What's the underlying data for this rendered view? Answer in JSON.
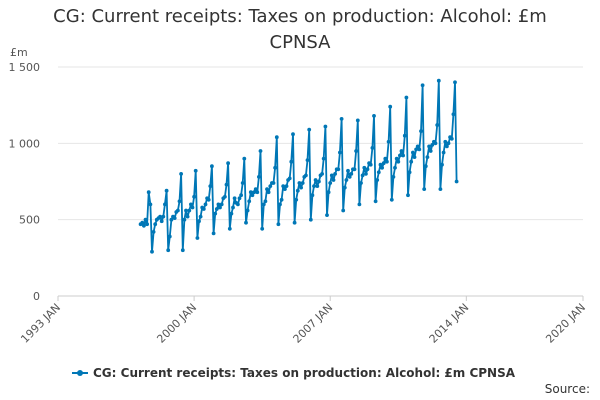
{
  "chart_data": {
    "type": "line",
    "title": "CG: Current receipts: Taxes on production: Alcohol: £m CPNSA",
    "ylabel": "£m",
    "xlabel": "",
    "ylim": [
      0,
      1500
    ],
    "y_ticks": [
      0,
      500,
      1000,
      1500
    ],
    "y_tick_labels": [
      "0",
      "500",
      "1 000",
      "1 500"
    ],
    "x_range": [
      1993,
      2020
    ],
    "x_ticks": [
      1993,
      2000,
      2007,
      2014,
      2020
    ],
    "x_tick_labels": [
      "1993 JAN",
      "2000 JAN",
      "2007 JAN",
      "2014 JAN",
      "2020 JAN"
    ],
    "grid": true,
    "legend_position": "bottom",
    "series": [
      {
        "name": "CG: Current receipts: Taxes on production: Alcohol: £m CPNSA",
        "color": "#0077b6",
        "start": "1997-04",
        "frequency": "monthly",
        "values": [
          470,
          480,
          460,
          500,
          470,
          680,
          600,
          290,
          420,
          470,
          500,
          510,
          520,
          490,
          520,
          600,
          690,
          300,
          390,
          500,
          520,
          510,
          550,
          560,
          620,
          800,
          300,
          500,
          560,
          520,
          560,
          600,
          580,
          650,
          820,
          380,
          490,
          520,
          580,
          570,
          600,
          640,
          630,
          720,
          850,
          410,
          540,
          570,
          600,
          580,
          600,
          640,
          650,
          730,
          870,
          440,
          540,
          580,
          640,
          610,
          600,
          640,
          660,
          740,
          900,
          480,
          560,
          620,
          680,
          660,
          680,
          700,
          680,
          780,
          950,
          440,
          600,
          620,
          700,
          680,
          720,
          740,
          740,
          840,
          1040,
          470,
          600,
          630,
          720,
          700,
          720,
          760,
          770,
          880,
          1060,
          480,
          630,
          690,
          740,
          710,
          740,
          780,
          790,
          890,
          1090,
          500,
          660,
          720,
          760,
          720,
          750,
          790,
          800,
          900,
          1110,
          530,
          680,
          740,
          790,
          760,
          800,
          830,
          830,
          940,
          1160,
          560,
          710,
          760,
          820,
          780,
          800,
          830,
          830,
          950,
          1150,
          600,
          740,
          790,
          840,
          800,
          830,
          870,
          860,
          970,
          1180,
          620,
          760,
          810,
          860,
          840,
          870,
          900,
          880,
          1010,
          1240,
          630,
          780,
          840,
          900,
          880,
          920,
          950,
          920,
          1050,
          1300,
          660,
          810,
          880,
          940,
          910,
          960,
          980,
          960,
          1080,
          1380,
          700,
          850,
          910,
          980,
          950,
          990,
          1010,
          1000,
          1120,
          1410,
          700,
          860,
          940,
          1010,
          980,
          1000,
          1040,
          1030,
          1190,
          1400,
          750
        ]
      }
    ]
  },
  "legend": {
    "label": "CG: Current receipts: Taxes on production: Alcohol: £m CPNSA"
  },
  "source": {
    "label": "Source:"
  }
}
